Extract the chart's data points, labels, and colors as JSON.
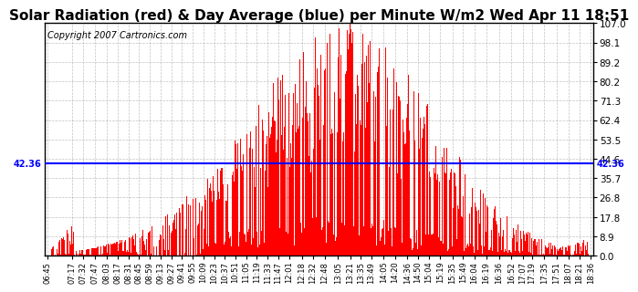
{
  "title": "Solar Radiation (red) & Day Average (blue) per Minute W/m2 Wed Apr 11 18:51",
  "copyright": "Copyright 2007 Cartronics.com",
  "bar_color": "#FF0000",
  "line_color": "#0000FF",
  "avg_value": 42.36,
  "ylim": [
    0.0,
    107.0
  ],
  "yticks": [
    0.0,
    8.9,
    17.8,
    26.8,
    35.7,
    44.6,
    53.5,
    62.4,
    71.3,
    80.2,
    89.2,
    98.1,
    107.0
  ],
  "ytick_labels": [
    "0.0",
    "8.9",
    "17.8",
    "26.8",
    "35.7",
    "44.6",
    "53.5",
    "62.4",
    "71.3",
    "80.2",
    "89.2",
    "98.1",
    "107.0"
  ],
  "background_color": "#FFFFFF",
  "grid_color": "#999999",
  "title_fontsize": 11,
  "copyright_fontsize": 7,
  "x_tick_labels": [
    "06:45",
    "07:17",
    "07:32",
    "07:47",
    "08:03",
    "08:17",
    "08:31",
    "08:45",
    "08:59",
    "09:13",
    "09:27",
    "09:41",
    "09:55",
    "10:09",
    "10:23",
    "10:37",
    "10:51",
    "11:05",
    "11:19",
    "11:33",
    "11:47",
    "12:01",
    "12:18",
    "12:32",
    "12:48",
    "13:05",
    "13:21",
    "13:35",
    "13:49",
    "14:05",
    "14:20",
    "14:36",
    "14:50",
    "15:04",
    "15:19",
    "15:35",
    "15:49",
    "16:04",
    "16:19",
    "16:36",
    "16:52",
    "17:07",
    "17:19",
    "17:35",
    "17:51",
    "18:07",
    "18:21",
    "18:36"
  ]
}
